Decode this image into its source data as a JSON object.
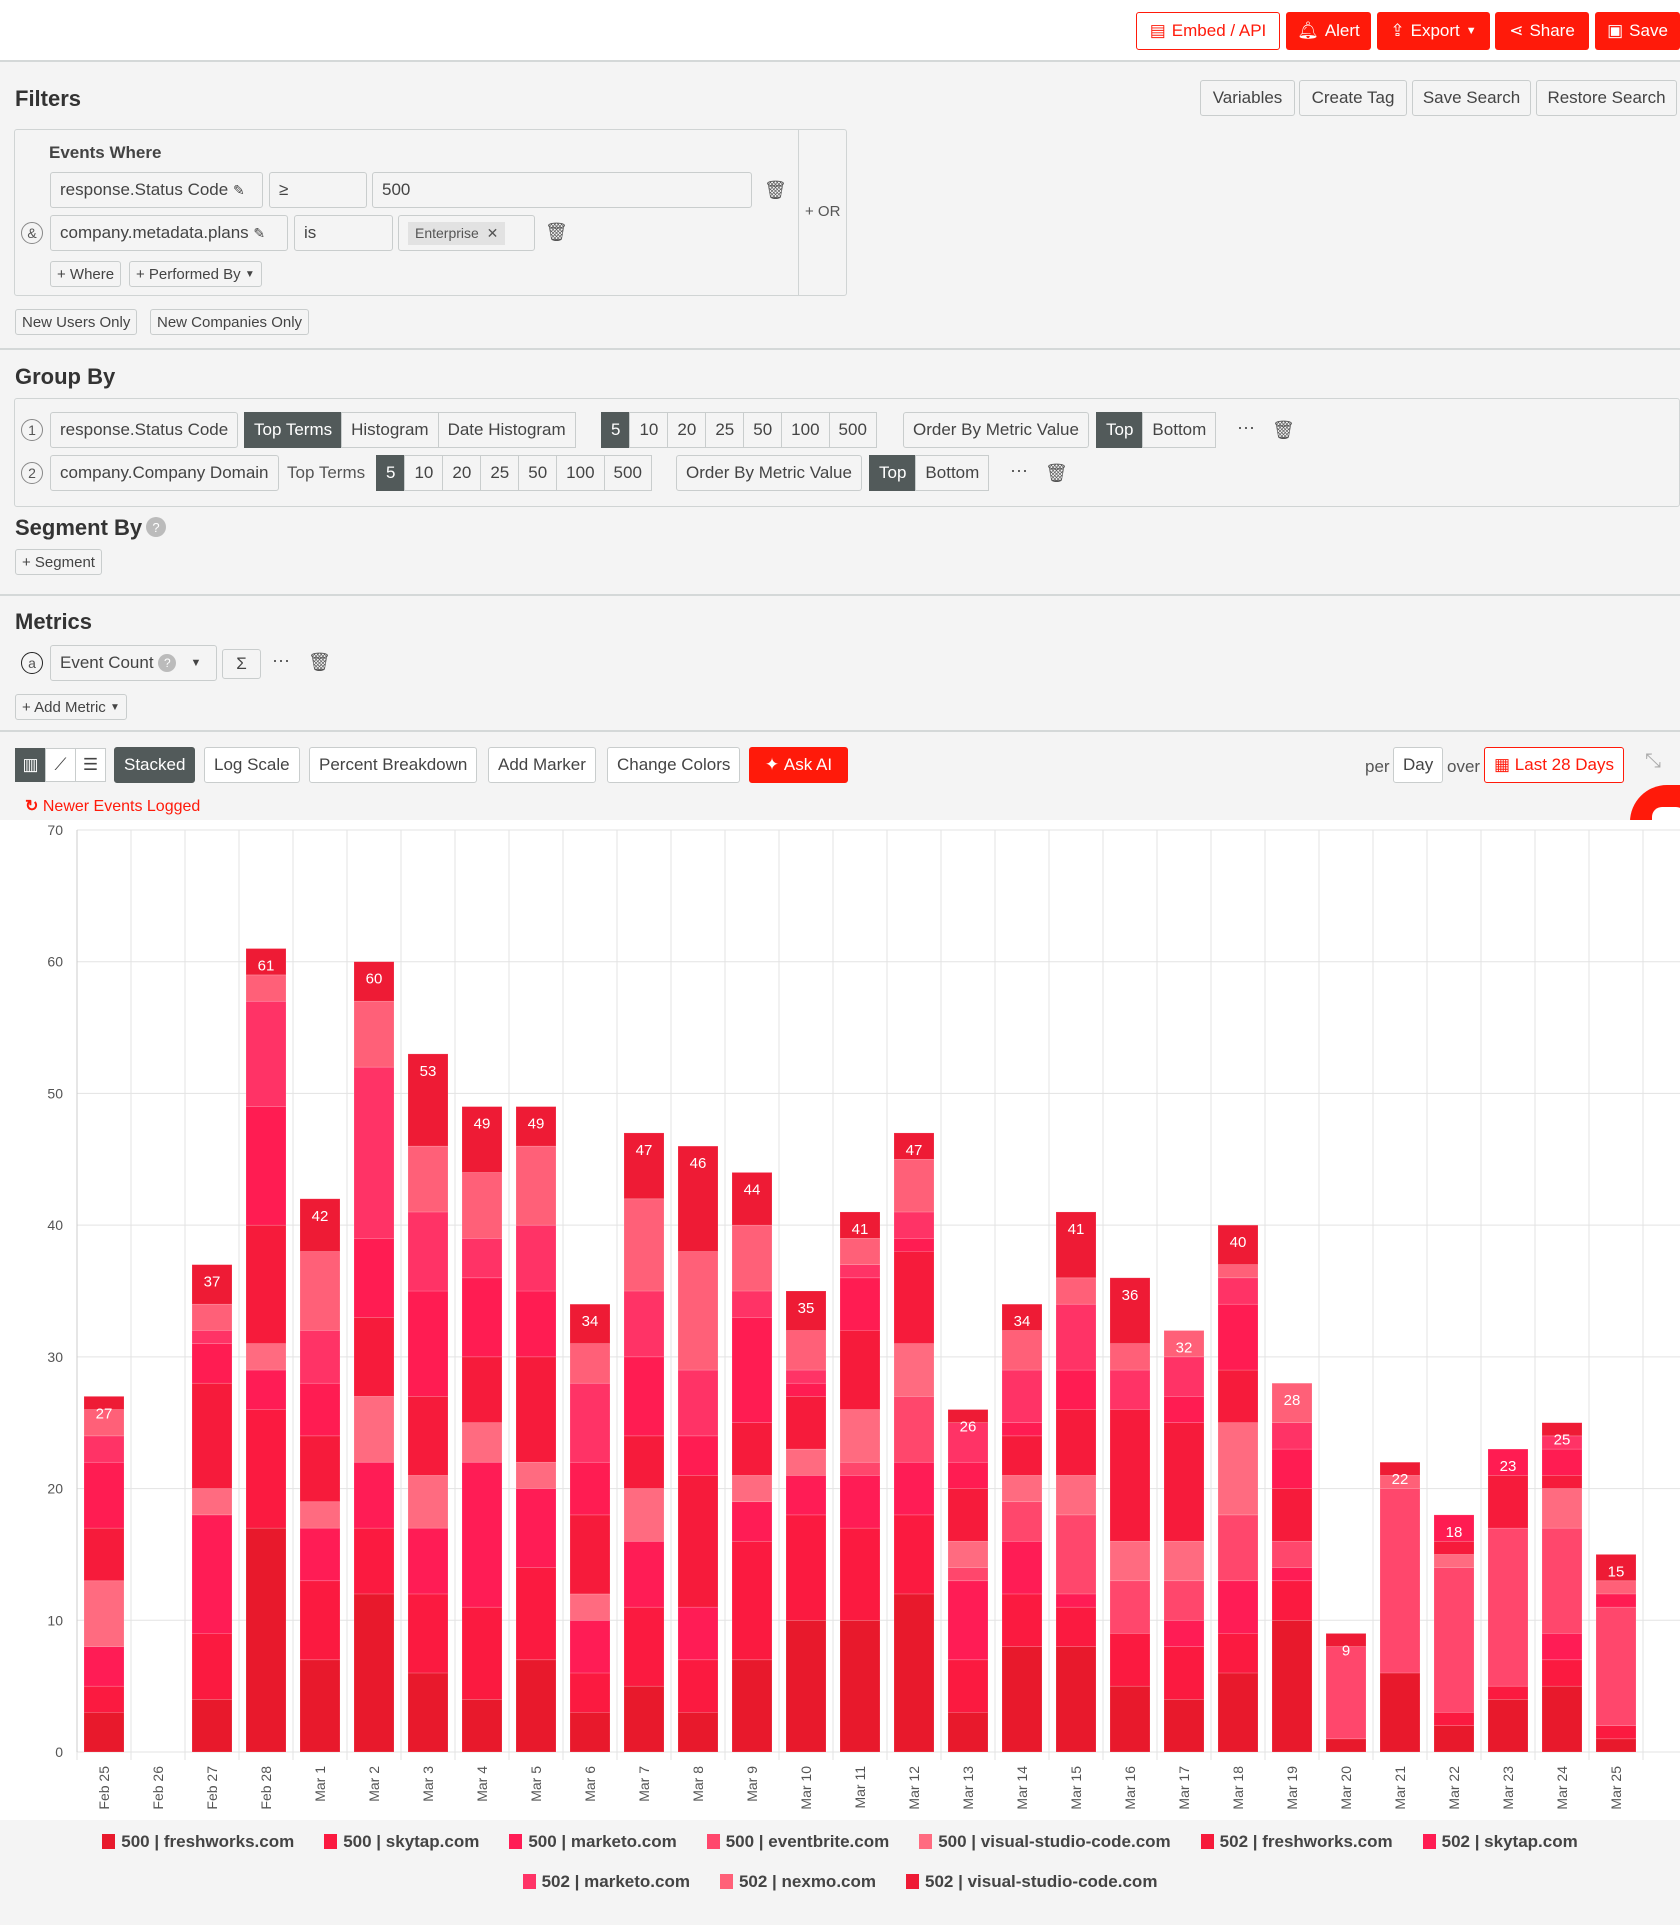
{
  "topbar": {
    "embed": "Embed / API",
    "alert": "Alert",
    "export": "Export",
    "share": "Share",
    "save": "Save"
  },
  "filters": {
    "title": "Filters",
    "variables": "Variables",
    "create_tag": "Create Tag",
    "save_search": "Save Search",
    "restore_search": "Restore Search",
    "events_where": "Events Where",
    "row1": {
      "field": "response.Status Code",
      "op": "≥",
      "value": "500"
    },
    "row2": {
      "conj": "&",
      "field": "company.metadata.plans",
      "op": "is",
      "tag": "Enterprise"
    },
    "or": "+ OR",
    "add_where": "+ Where",
    "performed_by": "+ Performed By",
    "new_users": "New Users Only",
    "new_companies": "New Companies Only"
  },
  "group_by": {
    "title": "Group By",
    "row1": {
      "num": "1",
      "field": "response.Status Code",
      "types": [
        "Top Terms",
        "Histogram",
        "Date Histogram"
      ],
      "sizes": [
        "5",
        "10",
        "20",
        "25",
        "50",
        "100",
        "500"
      ],
      "order": "Order By Metric Value",
      "dir": [
        "Top",
        "Bottom"
      ]
    },
    "row2": {
      "num": "2",
      "field": "company.Company Domain",
      "type": "Top Terms",
      "sizes": [
        "5",
        "10",
        "20",
        "25",
        "50",
        "100",
        "500"
      ],
      "order": "Order By Metric Value",
      "dir": [
        "Top",
        "Bottom"
      ]
    }
  },
  "segment_by": {
    "title": "Segment By",
    "add": "+ Segment"
  },
  "metrics": {
    "title": "Metrics",
    "letter": "a",
    "metric": "Event Count",
    "sigma": "Σ",
    "add": "+ Add Metric"
  },
  "toolbar": {
    "stacked": "Stacked",
    "log_scale": "Log Scale",
    "percent": "Percent Breakdown",
    "marker": "Add Marker",
    "colors": "Change Colors",
    "ask_ai": "Ask AI",
    "per": "per",
    "interval": "Day",
    "over": "over",
    "range": "Last 28 Days"
  },
  "notice": "Newer Events Logged",
  "chart_data": {
    "type": "bar",
    "stacked": true,
    "ylim": [
      0,
      70
    ],
    "yticks": [
      0,
      10,
      20,
      30,
      40,
      50,
      60,
      70
    ],
    "grid": true,
    "legend": "bottom",
    "categories": [
      "Feb 25",
      "Feb 26",
      "Feb 27",
      "Feb 28",
      "Mar 1",
      "Mar 2",
      "Mar 3",
      "Mar 4",
      "Mar 5",
      "Mar 6",
      "Mar 7",
      "Mar 8",
      "Mar 9",
      "Mar 10",
      "Mar 11",
      "Mar 12",
      "Mar 13",
      "Mar 14",
      "Mar 15",
      "Mar 16",
      "Mar 17",
      "Mar 18",
      "Mar 19",
      "Mar 20",
      "Mar 21",
      "Mar 22",
      "Mar 23",
      "Mar 24",
      "Mar 25"
    ],
    "totals": [
      27,
      0,
      37,
      61,
      42,
      60,
      53,
      49,
      49,
      34,
      47,
      46,
      44,
      35,
      41,
      47,
      26,
      34,
      41,
      36,
      32,
      40,
      28,
      9,
      22,
      18,
      23,
      25,
      15
    ],
    "series": [
      {
        "name": "500 | freshworks.com",
        "color": "#e8192c",
        "values": [
          3,
          0,
          4,
          17,
          7,
          12,
          6,
          4,
          7,
          3,
          5,
          3,
          7,
          10,
          10,
          12,
          3,
          8,
          8,
          5,
          4,
          6,
          10,
          1,
          6,
          2,
          4,
          5,
          1
        ]
      },
      {
        "name": "500 | skytap.com",
        "color": "#fb1a40",
        "values": [
          2,
          0,
          5,
          9,
          6,
          5,
          6,
          7,
          7,
          3,
          6,
          4,
          9,
          8,
          7,
          6,
          4,
          4,
          3,
          4,
          4,
          3,
          3,
          0,
          0,
          1,
          1,
          2,
          1
        ]
      },
      {
        "name": "500 | marketo.com",
        "color": "#ff1c55",
        "values": [
          3,
          0,
          9,
          3,
          4,
          5,
          5,
          11,
          6,
          4,
          5,
          4,
          3,
          3,
          4,
          4,
          6,
          4,
          1,
          0,
          2,
          4,
          1,
          0,
          0,
          0,
          0,
          2,
          0
        ]
      },
      {
        "name": "500 | eventbrite.com",
        "color": "#ff476c",
        "values": [
          0,
          0,
          0,
          0,
          0,
          0,
          0,
          0,
          0,
          0,
          0,
          0,
          0,
          0,
          1,
          5,
          1,
          3,
          6,
          4,
          3,
          5,
          2,
          7,
          14,
          11,
          12,
          8,
          9
        ]
      },
      {
        "name": "500 | visual-studio-code.com",
        "color": "#ff6b80",
        "values": [
          5,
          0,
          2,
          2,
          2,
          5,
          4,
          3,
          2,
          2,
          4,
          0,
          2,
          2,
          4,
          4,
          2,
          2,
          3,
          3,
          3,
          7,
          0,
          0,
          0,
          1,
          0,
          3,
          0
        ]
      },
      {
        "name": "502 | freshworks.com",
        "color": "#f61b3b",
        "values": [
          4,
          0,
          8,
          9,
          5,
          6,
          6,
          5,
          8,
          6,
          4,
          10,
          4,
          4,
          6,
          7,
          4,
          3,
          5,
          10,
          9,
          4,
          4,
          0,
          0,
          1,
          4,
          1,
          0
        ]
      },
      {
        "name": "502 | skytap.com",
        "color": "#ff1c52",
        "values": [
          5,
          0,
          3,
          9,
          4,
          6,
          8,
          6,
          5,
          4,
          6,
          3,
          8,
          1,
          4,
          1,
          2,
          1,
          3,
          0,
          2,
          5,
          3,
          0,
          0,
          2,
          2,
          2,
          1
        ]
      },
      {
        "name": "502 | marketo.com",
        "color": "#ff3366",
        "values": [
          2,
          0,
          1,
          8,
          4,
          13,
          6,
          3,
          5,
          6,
          5,
          5,
          2,
          1,
          1,
          2,
          3,
          4,
          5,
          3,
          3,
          2,
          2,
          0,
          0,
          0,
          0,
          1,
          0
        ]
      },
      {
        "name": "502 | nexmo.com",
        "color": "#ff6078",
        "values": [
          2,
          0,
          2,
          2,
          6,
          5,
          5,
          5,
          6,
          3,
          7,
          9,
          5,
          3,
          2,
          4,
          0,
          3,
          2,
          2,
          2,
          1,
          3,
          0,
          1,
          0,
          0,
          0,
          1
        ]
      },
      {
        "name": "502 | visual-studio-code.com",
        "color": "#ee1b35",
        "values": [
          1,
          0,
          3,
          2,
          4,
          3,
          7,
          5,
          3,
          3,
          5,
          8,
          4,
          3,
          2,
          2,
          1,
          2,
          5,
          5,
          0,
          3,
          0,
          1,
          1,
          0,
          0,
          1,
          2
        ]
      }
    ]
  },
  "colors": {
    "accent": "#ff1a0a",
    "dark_toggle": "#525a5a"
  }
}
